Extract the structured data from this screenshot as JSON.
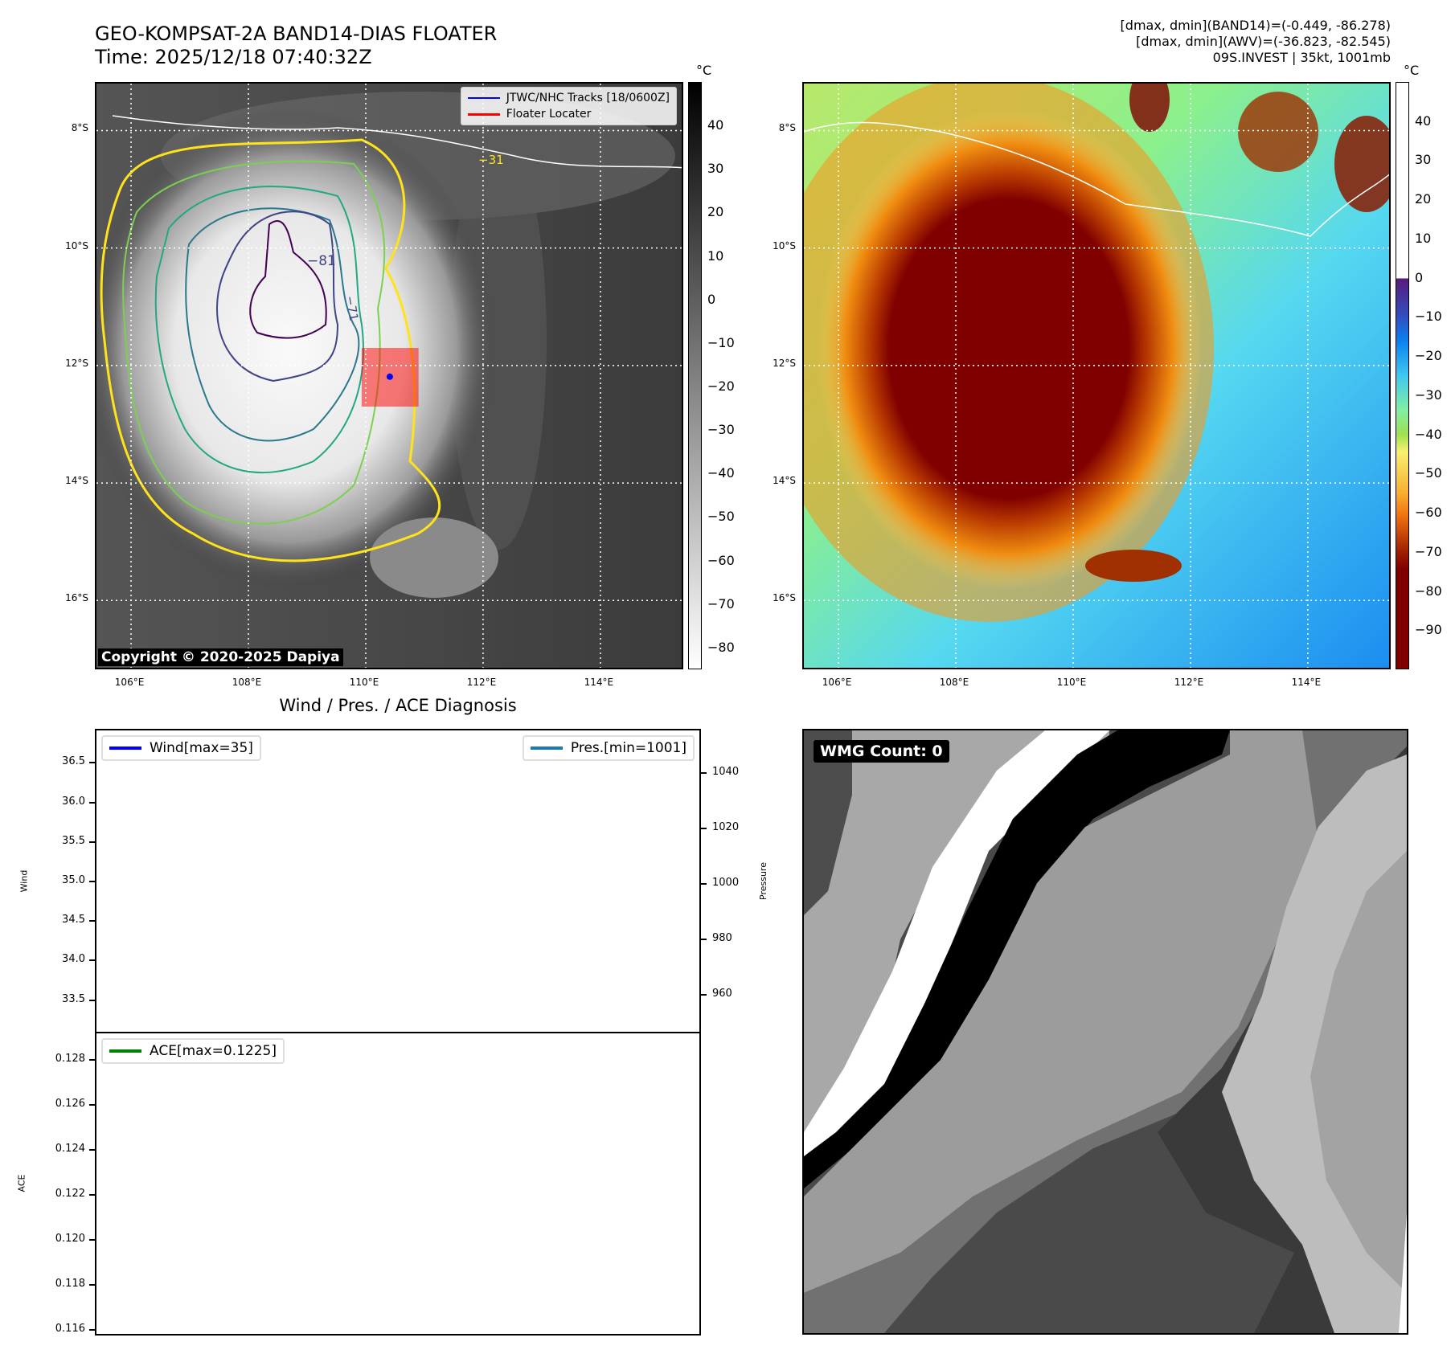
{
  "header": {
    "title_line1": "GEO-KOMPSAT-2A BAND14-DIAS FLOATER",
    "title_line2": "Time: 2025/12/18 07:40:32Z",
    "info_line1": "[dmax, dmin](BAND14)=(-0.449, -86.278)",
    "info_line2": "[dmax, dmin](AWV)=(-36.823, -82.545)",
    "info_line3": "09S.INVEST | 35kt, 1001mb"
  },
  "maps": {
    "lon_range": [
      105.41,
      115.44
    ],
    "lat_range": [
      -7.2,
      -17.2
    ],
    "lon_ticks": [
      106,
      108,
      110,
      112,
      114
    ],
    "lon_labels": [
      "106°E",
      "108°E",
      "110°E",
      "112°E",
      "114°E"
    ],
    "lat_ticks": [
      -8,
      -10,
      -12,
      -14,
      -16
    ],
    "lat_labels": [
      "8°S",
      "10°S",
      "12°S",
      "14°S",
      "16°S"
    ],
    "copyright": "Copyright © 2020-2025 Dapiya",
    "legend": [
      {
        "label": "JTWC/NHC Tracks [18/0600Z]",
        "color": "#0000ff"
      },
      {
        "label": "Floater Locater",
        "color": "#ff0000"
      }
    ],
    "track_point": {
      "lon": 110.41,
      "lat": -12.19
    },
    "floater_box": {
      "lon": [
        109.93,
        110.9
      ],
      "lat": [
        -11.7,
        -12.7
      ]
    },
    "contour_labels": [
      "−81",
      "−71",
      "−31"
    ]
  },
  "colorbars": {
    "unit": "°C",
    "left": {
      "range": [
        50,
        -85
      ],
      "ticks": [
        40,
        30,
        20,
        10,
        0,
        -10,
        -20,
        -30,
        -40,
        -50,
        -60,
        -70,
        -80
      ],
      "labels": [
        "40",
        "30",
        "20",
        "10",
        "0",
        "−10",
        "−20",
        "−30",
        "−40",
        "−50",
        "−60",
        "−70",
        "−80"
      ]
    },
    "right": {
      "range": [
        50,
        -100
      ],
      "ticks": [
        40,
        30,
        20,
        10,
        0,
        -10,
        -20,
        -30,
        -40,
        -50,
        -60,
        -70,
        -80,
        -90
      ],
      "labels": [
        "40",
        "30",
        "20",
        "10",
        "0",
        "−10",
        "−20",
        "−30",
        "−40",
        "−50",
        "−60",
        "−70",
        "−80",
        "−90"
      ]
    }
  },
  "chart_data": [
    {
      "type": "line",
      "title": "Wind / Pres. / ACE Diagnosis",
      "ylabel": "Wind",
      "ylim": [
        33.08,
        36.93
      ],
      "yticks": [
        36.5,
        36.0,
        35.5,
        35.0,
        34.5,
        34.0,
        33.5
      ],
      "ytick_labels": [
        "36.5",
        "36.0",
        "35.5",
        "35.0",
        "34.5",
        "34.0",
        "33.5"
      ],
      "series": [
        {
          "name": "Wind[max=35]",
          "color": "#0000ff",
          "values": []
        }
      ],
      "legend": "top-left"
    },
    {
      "type": "line",
      "ylabel": "Pressure",
      "ylim": [
        946,
        1056
      ],
      "yticks": [
        1040,
        1020,
        1000,
        980,
        960
      ],
      "ytick_labels": [
        "1040",
        "1020",
        "1000",
        "980",
        "960"
      ],
      "series": [
        {
          "name": "Pres.[min=1001]",
          "color": "#1f77b4",
          "values": []
        }
      ],
      "legend": "top-right"
    },
    {
      "type": "line",
      "ylabel": "ACE",
      "ylim": [
        0.11575,
        0.12925
      ],
      "yticks": [
        0.128,
        0.126,
        0.124,
        0.122,
        0.12,
        0.118,
        0.116
      ],
      "ytick_labels": [
        "0.128",
        "0.126",
        "0.124",
        "0.122",
        "0.120",
        "0.118",
        "0.116"
      ],
      "series": [
        {
          "name": "ACE[max=0.1225]",
          "color": "#008000",
          "values": []
        }
      ],
      "legend": "top-left"
    }
  ],
  "wmg": {
    "badge": "WMG Count: 0"
  }
}
